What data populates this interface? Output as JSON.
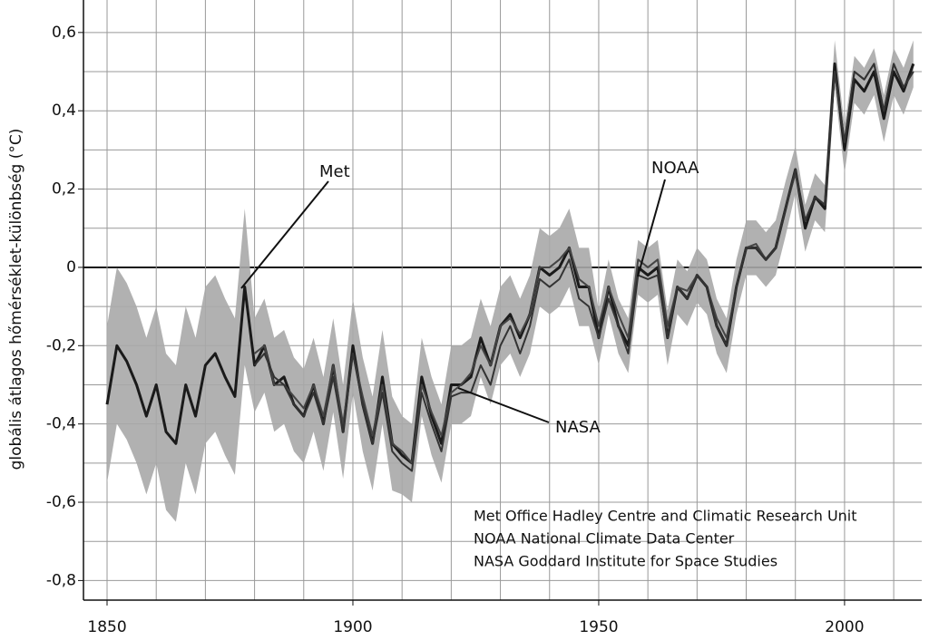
{
  "chart_data": {
    "type": "line",
    "ylabel": "globális átlagos hőmérséklet-különbség (°C)",
    "xlim": [
      1845.2,
      2015.7
    ],
    "ylim": [
      -0.85,
      0.683
    ],
    "xticks": [
      1850,
      1900,
      1950,
      2000
    ],
    "xminorticks": [
      1850,
      1860,
      1870,
      1880,
      1890,
      1900,
      1910,
      1920,
      1930,
      1940,
      1950,
      1960,
      1970,
      1980,
      1990,
      2000,
      2010
    ],
    "yticks": [
      {
        "value": -0.8,
        "label": "-0,8"
      },
      {
        "value": -0.6,
        "label": "-0,6"
      },
      {
        "value": -0.4,
        "label": "-0,4"
      },
      {
        "value": -0.2,
        "label": "-0,2"
      },
      0,
      {
        "value": 0.2,
        "label": "0,2"
      },
      {
        "value": 0.4,
        "label": "0,4"
      },
      {
        "value": 0.6,
        "label": "0,6"
      }
    ],
    "yminorticks": [
      -0.8,
      -0.7,
      -0.6,
      -0.5,
      -0.4,
      -0.3,
      -0.2,
      -0.1,
      0,
      0.1,
      0.2,
      0.3,
      0.4,
      0.5,
      0.6
    ],
    "grid": true,
    "x": [
      1850,
      1852,
      1854,
      1856,
      1858,
      1860,
      1862,
      1864,
      1866,
      1868,
      1870,
      1872,
      1874,
      1876,
      1878,
      1880,
      1882,
      1884,
      1886,
      1888,
      1890,
      1892,
      1894,
      1896,
      1898,
      1900,
      1902,
      1904,
      1906,
      1908,
      1910,
      1912,
      1914,
      1916,
      1918,
      1920,
      1922,
      1924,
      1926,
      1928,
      1930,
      1932,
      1934,
      1936,
      1938,
      1940,
      1942,
      1944,
      1946,
      1948,
      1950,
      1952,
      1954,
      1956,
      1958,
      1960,
      1962,
      1964,
      1966,
      1968,
      1970,
      1972,
      1974,
      1976,
      1978,
      1980,
      1982,
      1984,
      1986,
      1988,
      1990,
      1992,
      1994,
      1996,
      1998,
      2000,
      2002,
      2004,
      2006,
      2008,
      2010,
      2012,
      2014
    ],
    "band": {
      "color": "#a9a9a9",
      "upper": [
        -0.15,
        0.0,
        -0.04,
        -0.1,
        -0.18,
        -0.1,
        -0.22,
        -0.25,
        -0.1,
        -0.18,
        -0.05,
        -0.02,
        -0.08,
        -0.13,
        0.15,
        -0.13,
        -0.08,
        -0.18,
        -0.16,
        -0.23,
        -0.26,
        -0.18,
        -0.28,
        -0.13,
        -0.3,
        -0.08,
        -0.23,
        -0.33,
        -0.16,
        -0.33,
        -0.38,
        -0.4,
        -0.18,
        -0.28,
        -0.35,
        -0.2,
        -0.2,
        -0.18,
        -0.08,
        -0.15,
        -0.05,
        -0.02,
        -0.08,
        -0.02,
        0.1,
        0.08,
        0.1,
        0.15,
        0.05,
        0.05,
        -0.11,
        0.02,
        -0.08,
        -0.13,
        0.07,
        0.05,
        0.07,
        -0.11,
        0.02,
        -0.01,
        0.05,
        0.02,
        -0.08,
        -0.13,
        0.02,
        0.12,
        0.12,
        0.09,
        0.12,
        0.22,
        0.31,
        0.16,
        0.24,
        0.21,
        0.58,
        0.36,
        0.54,
        0.51,
        0.56,
        0.44,
        0.56,
        0.51,
        0.58
      ],
      "lower": [
        -0.55,
        -0.4,
        -0.44,
        -0.5,
        -0.58,
        -0.5,
        -0.62,
        -0.65,
        -0.5,
        -0.58,
        -0.45,
        -0.42,
        -0.48,
        -0.53,
        -0.25,
        -0.37,
        -0.32,
        -0.42,
        -0.4,
        -0.47,
        -0.5,
        -0.42,
        -0.52,
        -0.37,
        -0.54,
        -0.32,
        -0.47,
        -0.57,
        -0.4,
        -0.57,
        -0.58,
        -0.6,
        -0.38,
        -0.48,
        -0.55,
        -0.4,
        -0.4,
        -0.38,
        -0.28,
        -0.35,
        -0.25,
        -0.22,
        -0.28,
        -0.22,
        -0.1,
        -0.12,
        -0.1,
        -0.05,
        -0.15,
        -0.15,
        -0.25,
        -0.12,
        -0.22,
        -0.27,
        -0.07,
        -0.09,
        -0.07,
        -0.25,
        -0.12,
        -0.15,
        -0.09,
        -0.12,
        -0.22,
        -0.27,
        -0.12,
        -0.02,
        -0.02,
        -0.05,
        -0.02,
        0.08,
        0.19,
        0.04,
        0.12,
        0.09,
        0.46,
        0.24,
        0.42,
        0.39,
        0.44,
        0.32,
        0.44,
        0.39,
        0.46
      ]
    },
    "series": [
      {
        "name": "Met",
        "color": "#1a1a1a",
        "values": [
          -0.35,
          -0.2,
          -0.24,
          -0.3,
          -0.38,
          -0.3,
          -0.42,
          -0.45,
          -0.3,
          -0.38,
          -0.25,
          -0.22,
          -0.28,
          -0.33,
          -0.05,
          -0.25,
          -0.2,
          -0.3,
          -0.28,
          -0.35,
          -0.38,
          -0.3,
          -0.4,
          -0.25,
          -0.42,
          -0.2,
          -0.35,
          -0.45,
          -0.28,
          -0.45,
          -0.48,
          -0.5,
          -0.28,
          -0.38,
          -0.45,
          -0.3,
          -0.3,
          -0.28,
          -0.18,
          -0.25,
          -0.15,
          -0.12,
          -0.18,
          -0.12,
          0.0,
          -0.02,
          0.0,
          0.05,
          -0.05,
          -0.05,
          -0.18,
          -0.05,
          -0.15,
          -0.2,
          0.0,
          -0.02,
          0.0,
          -0.18,
          -0.05,
          -0.08,
          -0.02,
          -0.05,
          -0.15,
          -0.2,
          -0.05,
          0.05,
          0.05,
          0.02,
          0.05,
          0.15,
          0.25,
          0.1,
          0.18,
          0.15,
          0.52,
          0.3,
          0.48,
          0.45,
          0.5,
          0.38,
          0.5,
          0.45,
          0.52
        ]
      },
      {
        "name": "NOAA",
        "color": "#444444",
        "values": [
          null,
          null,
          null,
          null,
          null,
          null,
          null,
          null,
          null,
          null,
          null,
          null,
          null,
          null,
          null,
          -0.22,
          -0.2,
          -0.3,
          -0.3,
          -0.33,
          -0.36,
          -0.3,
          -0.38,
          -0.25,
          -0.4,
          -0.22,
          -0.33,
          -0.43,
          -0.3,
          -0.45,
          -0.47,
          -0.5,
          -0.3,
          -0.37,
          -0.43,
          -0.32,
          -0.3,
          -0.27,
          -0.2,
          -0.25,
          -0.15,
          -0.13,
          -0.17,
          -0.12,
          0.0,
          0.0,
          0.02,
          0.05,
          -0.03,
          -0.05,
          -0.15,
          -0.05,
          -0.12,
          -0.18,
          0.02,
          0.0,
          0.02,
          -0.15,
          -0.05,
          -0.06,
          -0.02,
          -0.05,
          -0.13,
          -0.18,
          -0.05,
          0.05,
          0.06,
          0.02,
          0.05,
          0.15,
          0.24,
          0.12,
          0.18,
          0.16,
          0.5,
          0.32,
          0.5,
          0.48,
          0.52,
          0.4,
          0.52,
          0.46,
          0.5
        ]
      },
      {
        "name": "NASA",
        "color": "#333333",
        "values": [
          null,
          null,
          null,
          null,
          null,
          null,
          null,
          null,
          null,
          null,
          null,
          null,
          null,
          null,
          null,
          -0.25,
          -0.22,
          -0.28,
          -0.3,
          -0.35,
          -0.38,
          -0.32,
          -0.4,
          -0.28,
          -0.42,
          -0.22,
          -0.35,
          -0.45,
          -0.32,
          -0.47,
          -0.5,
          -0.52,
          -0.32,
          -0.4,
          -0.47,
          -0.33,
          -0.32,
          -0.32,
          -0.25,
          -0.3,
          -0.2,
          -0.15,
          -0.22,
          -0.15,
          -0.03,
          -0.05,
          -0.03,
          0.02,
          -0.08,
          -0.1,
          -0.18,
          -0.08,
          -0.15,
          -0.22,
          -0.02,
          -0.03,
          -0.02,
          -0.18,
          -0.05,
          -0.08,
          -0.02,
          -0.05,
          -0.15,
          -0.2,
          -0.05,
          0.05,
          0.05,
          0.02,
          0.05,
          0.15,
          0.25,
          0.12,
          0.18,
          0.16,
          0.5,
          0.32,
          0.5,
          0.48,
          0.52,
          0.4,
          0.52,
          0.46,
          0.5
        ]
      }
    ],
    "sources": [
      "Met Office Hadley Centre and Climatic Research Unit",
      "NOAA National Climate Data Center",
      "NASA Goddard Institute for Space Studies"
    ]
  }
}
